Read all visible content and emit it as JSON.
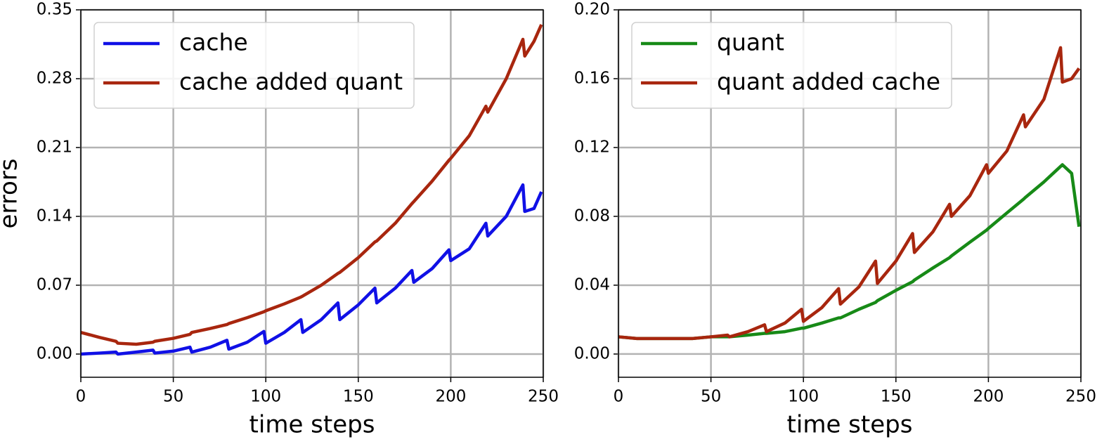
{
  "chart_data": [
    {
      "type": "line",
      "ylabel": "errors",
      "xlabel": "time steps",
      "legend": "upper left",
      "grid": true,
      "x": [
        0,
        10,
        19,
        20,
        30,
        39,
        40,
        50,
        59,
        60,
        70,
        79,
        80,
        90,
        99,
        100,
        110,
        119,
        120,
        130,
        139,
        140,
        150,
        159,
        160,
        170,
        179,
        180,
        190,
        199,
        200,
        210,
        219,
        220,
        230,
        239,
        240,
        245,
        249
      ],
      "series": [
        {
          "name": "cache",
          "color": "#1010e6",
          "values": [
            0.0,
            0.001,
            0.002,
            0.0,
            0.002,
            0.004,
            0.001,
            0.003,
            0.007,
            0.002,
            0.007,
            0.014,
            0.005,
            0.012,
            0.023,
            0.011,
            0.022,
            0.035,
            0.022,
            0.035,
            0.052,
            0.035,
            0.05,
            0.067,
            0.052,
            0.067,
            0.085,
            0.073,
            0.087,
            0.106,
            0.095,
            0.107,
            0.133,
            0.12,
            0.14,
            0.172,
            0.145,
            0.148,
            0.165
          ]
        },
        {
          "name": "cache added quant",
          "color": "#a8260e",
          "values": [
            0.022,
            0.017,
            0.013,
            0.011,
            0.01,
            0.012,
            0.013,
            0.016,
            0.02,
            0.022,
            0.026,
            0.03,
            0.031,
            0.037,
            0.043,
            0.044,
            0.051,
            0.058,
            0.059,
            0.07,
            0.082,
            0.083,
            0.098,
            0.114,
            0.115,
            0.133,
            0.153,
            0.155,
            0.176,
            0.197,
            0.199,
            0.222,
            0.252,
            0.246,
            0.28,
            0.32,
            0.303,
            0.318,
            0.335
          ]
        }
      ],
      "xlim": [
        0,
        250
      ],
      "xticks": [
        0,
        50,
        100,
        150,
        200,
        250
      ],
      "ylim": [
        -0.0236,
        0.35
      ],
      "yticks": [
        {
          "value": 0,
          "label": "0.00"
        },
        {
          "value": 0.07,
          "label": "0.07"
        },
        {
          "value": 0.14,
          "label": "0.14"
        },
        {
          "value": 0.21,
          "label": "0.21"
        },
        {
          "value": 0.28,
          "label": "0.28"
        },
        {
          "value": 0.35,
          "label": "0.35"
        }
      ]
    },
    {
      "type": "line",
      "xlabel": "time steps",
      "legend": "upper left",
      "grid": true,
      "x": [
        0,
        10,
        19,
        20,
        30,
        39,
        40,
        50,
        59,
        60,
        70,
        79,
        80,
        90,
        99,
        100,
        110,
        119,
        120,
        130,
        139,
        140,
        150,
        159,
        160,
        170,
        179,
        180,
        190,
        199,
        200,
        210,
        219,
        220,
        230,
        239,
        240,
        245,
        249
      ],
      "series": [
        {
          "name": "quant",
          "color": "#178a17",
          "values": [
            0.01,
            0.009,
            0.009,
            0.009,
            0.009,
            0.009,
            0.009,
            0.01,
            0.01,
            0.01,
            0.011,
            0.012,
            0.012,
            0.013,
            0.015,
            0.015,
            0.018,
            0.021,
            0.021,
            0.026,
            0.03,
            0.031,
            0.037,
            0.042,
            0.043,
            0.05,
            0.056,
            0.057,
            0.065,
            0.072,
            0.073,
            0.082,
            0.09,
            0.091,
            0.1,
            0.109,
            0.11,
            0.105,
            0.074
          ]
        },
        {
          "name": "quant added cache",
          "color": "#a8260e",
          "values": [
            0.01,
            0.009,
            0.009,
            0.009,
            0.009,
            0.009,
            0.009,
            0.01,
            0.011,
            0.01,
            0.013,
            0.017,
            0.013,
            0.018,
            0.026,
            0.019,
            0.027,
            0.038,
            0.029,
            0.039,
            0.054,
            0.041,
            0.054,
            0.07,
            0.059,
            0.071,
            0.087,
            0.08,
            0.092,
            0.11,
            0.105,
            0.118,
            0.139,
            0.132,
            0.148,
            0.178,
            0.158,
            0.16,
            0.166
          ]
        }
      ],
      "xlim": [
        0,
        250
      ],
      "xticks": [
        0,
        50,
        100,
        150,
        200,
        250
      ],
      "ylim": [
        -0.0135,
        0.2
      ],
      "yticks": [
        {
          "value": 0,
          "label": "0.00"
        },
        {
          "value": 0.04,
          "label": "0.04"
        },
        {
          "value": 0.08,
          "label": "0.08"
        },
        {
          "value": 0.12,
          "label": "0.12"
        },
        {
          "value": 0.16,
          "label": "0.16"
        },
        {
          "value": 0.2,
          "label": "0.20"
        }
      ]
    }
  ]
}
